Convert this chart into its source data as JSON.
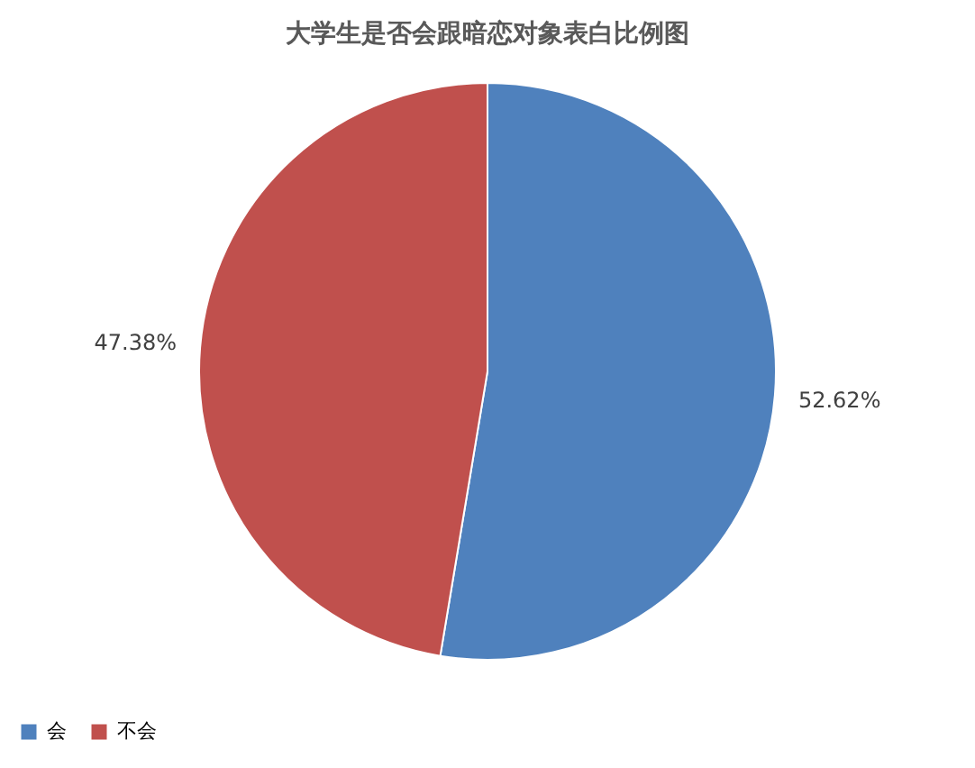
{
  "chart_data": {
    "type": "pie",
    "title": "大学生是否会跟暗恋对象表白比例图",
    "categories": [
      "会",
      "不会"
    ],
    "values": [
      52.62,
      47.38
    ],
    "colors": [
      "#4f81bd",
      "#c0504d"
    ],
    "value_labels": [
      "52.62%",
      "47.38%"
    ],
    "legend": "bottom"
  }
}
